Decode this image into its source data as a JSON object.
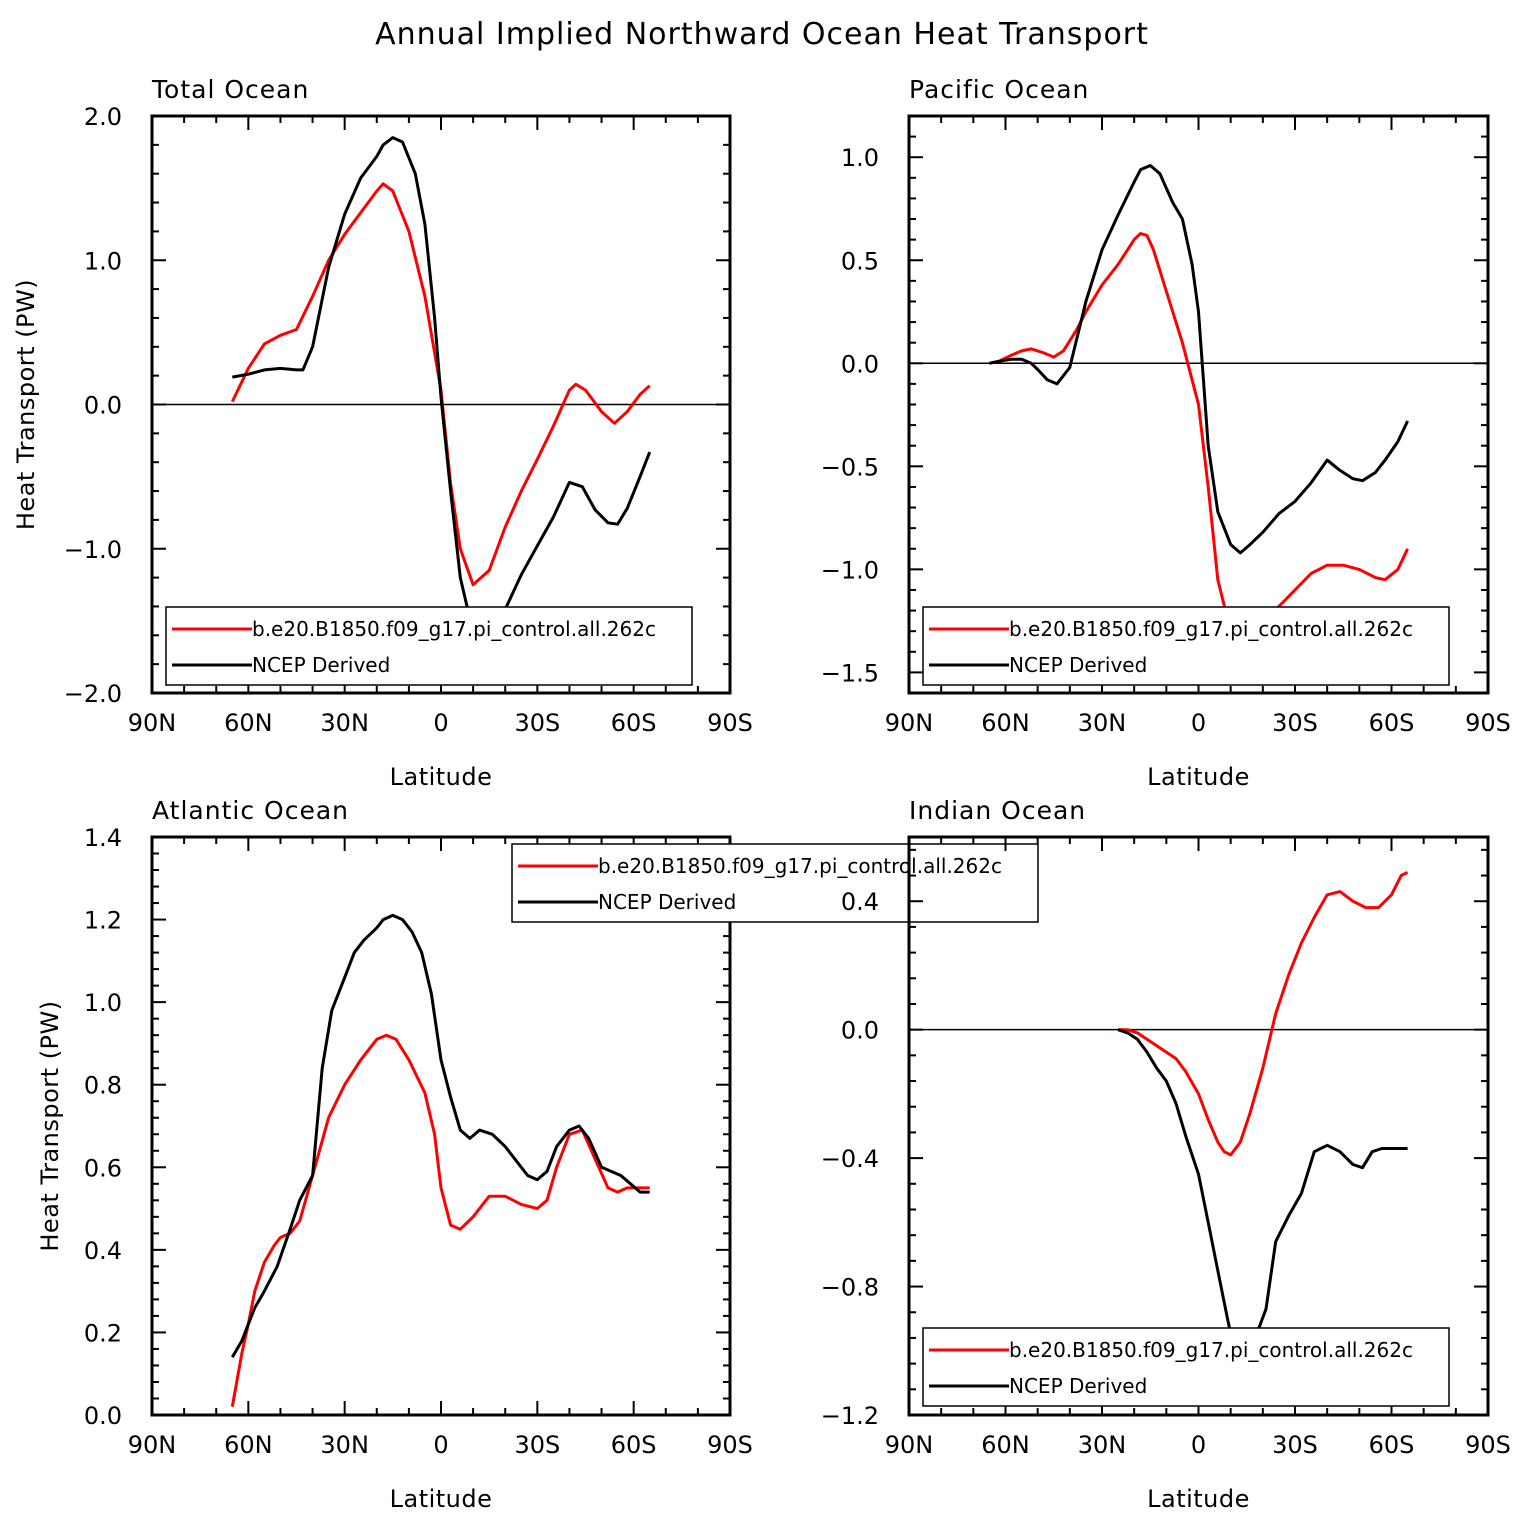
{
  "figure": {
    "title": "Annual Implied Northward Ocean Heat Transport"
  },
  "colors": {
    "model": "#ff0000",
    "obs": "#000000",
    "frame": "#000000"
  },
  "chart_data": [
    {
      "type": "line",
      "title": "Total Ocean",
      "xlabel": "Latitude",
      "ylabel": "Heat Transport (PW)",
      "xlim": [
        90,
        -90
      ],
      "ylim": [
        -2.0,
        2.0
      ],
      "xticks": [
        90,
        60,
        30,
        0,
        -30,
        -60,
        -90
      ],
      "xtick_labels": [
        "90N",
        "60N",
        "30N",
        "0",
        "30S",
        "60S",
        "90S"
      ],
      "yticks": [
        -2.0,
        -1.0,
        0.0,
        1.0,
        2.0
      ],
      "ytick_labels": [
        "−2.0",
        "−1.0",
        "0.0",
        "1.0",
        "2.0"
      ],
      "zero_line": true,
      "legend": "bottom",
      "series": [
        {
          "name": "b.e20.B1850.f09_g17.pi_control.all.262c",
          "color": "red",
          "x": [
            65,
            60,
            55,
            50,
            45,
            40,
            35,
            30,
            25,
            20,
            18,
            15,
            10,
            5,
            0,
            -3,
            -6,
            -10,
            -15,
            -20,
            -25,
            -30,
            -35,
            -40,
            -42,
            -45,
            -50,
            -54,
            -58,
            -62,
            -65
          ],
          "y": [
            0.02,
            0.25,
            0.42,
            0.48,
            0.52,
            0.75,
            1.0,
            1.18,
            1.33,
            1.48,
            1.53,
            1.48,
            1.2,
            0.75,
            0.1,
            -0.55,
            -1.0,
            -1.25,
            -1.15,
            -0.85,
            -0.6,
            -0.38,
            -0.15,
            0.1,
            0.14,
            0.1,
            -0.05,
            -0.13,
            -0.05,
            0.07,
            0.13
          ]
        },
        {
          "name": "NCEP Derived",
          "color": "black",
          "x": [
            65,
            60,
            55,
            50,
            45,
            43,
            40,
            35,
            30,
            25,
            20,
            18,
            15,
            12,
            8,
            5,
            2,
            0,
            -3,
            -6,
            -10,
            -13,
            -16,
            -20,
            -25,
            -30,
            -35,
            -40,
            -44,
            -48,
            -52,
            -55,
            -58,
            -62,
            -65
          ],
          "y": [
            0.19,
            0.21,
            0.24,
            0.25,
            0.24,
            0.24,
            0.4,
            0.95,
            1.32,
            1.57,
            1.72,
            1.8,
            1.85,
            1.82,
            1.6,
            1.25,
            0.6,
            0.05,
            -0.6,
            -1.2,
            -1.58,
            -1.66,
            -1.6,
            -1.42,
            -1.18,
            -0.98,
            -0.78,
            -0.54,
            -0.57,
            -0.73,
            -0.82,
            -0.83,
            -0.72,
            -0.5,
            -0.33
          ]
        }
      ]
    },
    {
      "type": "line",
      "title": "Pacific Ocean",
      "xlabel": "Latitude",
      "ylabel": "",
      "xlim": [
        90,
        -90
      ],
      "ylim": [
        -1.6,
        1.2
      ],
      "xticks": [
        90,
        60,
        30,
        0,
        -30,
        -60,
        -90
      ],
      "xtick_labels": [
        "90N",
        "60N",
        "30N",
        "0",
        "30S",
        "60S",
        "90S"
      ],
      "yticks": [
        -1.5,
        -1.0,
        -0.5,
        0.0,
        0.5,
        1.0
      ],
      "ytick_labels": [
        "−1.5",
        "−1.0",
        "−0.5",
        "0.0",
        "0.5",
        "1.0"
      ],
      "zero_line": true,
      "legend": "bottom",
      "series": [
        {
          "name": "b.e20.B1850.f09_g17.pi_control.all.262c",
          "color": "red",
          "x": [
            65,
            62,
            58,
            55,
            52,
            50,
            48,
            45,
            42,
            38,
            35,
            30,
            25,
            20,
            18,
            16,
            14,
            10,
            5,
            0,
            -3,
            -6,
            -10,
            -15,
            -20,
            -25,
            -30,
            -35,
            -40,
            -45,
            -50,
            -55,
            -58,
            -62,
            -65
          ],
          "y": [
            0.0,
            0.01,
            0.04,
            0.06,
            0.07,
            0.06,
            0.05,
            0.03,
            0.06,
            0.16,
            0.25,
            0.38,
            0.48,
            0.6,
            0.63,
            0.62,
            0.55,
            0.35,
            0.1,
            -0.2,
            -0.6,
            -1.05,
            -1.3,
            -1.32,
            -1.25,
            -1.18,
            -1.1,
            -1.02,
            -0.98,
            -0.98,
            -1.0,
            -1.04,
            -1.05,
            -1.0,
            -0.9
          ]
        },
        {
          "name": "NCEP Derived",
          "color": "black",
          "x": [
            65,
            62,
            58,
            55,
            52,
            50,
            47,
            44,
            40,
            35,
            30,
            25,
            20,
            18,
            15,
            12,
            10,
            8,
            5,
            2,
            0,
            -3,
            -6,
            -10,
            -13,
            -16,
            -20,
            -25,
            -30,
            -35,
            -40,
            -44,
            -48,
            -51,
            -55,
            -58,
            -62,
            -65
          ],
          "y": [
            0.0,
            0.01,
            0.02,
            0.02,
            0.0,
            -0.03,
            -0.08,
            -0.1,
            -0.02,
            0.3,
            0.55,
            0.72,
            0.88,
            0.94,
            0.96,
            0.92,
            0.85,
            0.78,
            0.7,
            0.48,
            0.25,
            -0.4,
            -0.72,
            -0.88,
            -0.92,
            -0.88,
            -0.82,
            -0.73,
            -0.67,
            -0.58,
            -0.47,
            -0.52,
            -0.56,
            -0.57,
            -0.53,
            -0.47,
            -0.38,
            -0.28
          ]
        }
      ]
    },
    {
      "type": "line",
      "title": "Atlantic Ocean",
      "xlabel": "Latitude",
      "ylabel": "Heat Transport (PW)",
      "xlim": [
        90,
        -90
      ],
      "ylim": [
        0.0,
        1.4
      ],
      "xticks": [
        90,
        60,
        30,
        0,
        -30,
        -60,
        -90
      ],
      "xtick_labels": [
        "90N",
        "60N",
        "30N",
        "0",
        "30S",
        "60S",
        "90S"
      ],
      "yticks": [
        0.0,
        0.2,
        0.4,
        0.6,
        0.8,
        1.0,
        1.2,
        1.4
      ],
      "ytick_labels": [
        "0.0",
        "0.2",
        "0.4",
        "0.6",
        "0.8",
        "1.0",
        "1.2",
        "1.4"
      ],
      "zero_line": false,
      "legend": "top-right",
      "series": [
        {
          "name": "b.e20.B1850.f09_g17.pi_control.all.262c",
          "color": "red",
          "x": [
            65,
            62,
            60,
            58,
            55,
            52,
            50,
            47,
            44,
            40,
            35,
            30,
            25,
            20,
            17,
            14,
            10,
            5,
            2,
            0,
            -3,
            -6,
            -10,
            -15,
            -20,
            -25,
            -30,
            -33,
            -36,
            -40,
            -44,
            -48,
            -52,
            -55,
            -58,
            -62,
            -65
          ],
          "y": [
            0.02,
            0.15,
            0.22,
            0.3,
            0.37,
            0.41,
            0.43,
            0.44,
            0.47,
            0.58,
            0.72,
            0.8,
            0.86,
            0.91,
            0.92,
            0.91,
            0.86,
            0.78,
            0.68,
            0.55,
            0.46,
            0.45,
            0.48,
            0.53,
            0.53,
            0.51,
            0.5,
            0.52,
            0.6,
            0.68,
            0.69,
            0.62,
            0.55,
            0.54,
            0.55,
            0.55,
            0.55
          ]
        },
        {
          "name": "NCEP Derived",
          "color": "black",
          "x": [
            65,
            62,
            58,
            55,
            51,
            47,
            44,
            40,
            37,
            34,
            30,
            27,
            24,
            20,
            18,
            15,
            12,
            9,
            6,
            3,
            0,
            -3,
            -6,
            -9,
            -12,
            -16,
            -20,
            -24,
            -27,
            -30,
            -33,
            -36,
            -40,
            -43,
            -46,
            -50,
            -53,
            -56,
            -59,
            -62,
            -65
          ],
          "y": [
            0.14,
            0.18,
            0.26,
            0.3,
            0.36,
            0.45,
            0.52,
            0.58,
            0.84,
            0.98,
            1.06,
            1.12,
            1.15,
            1.18,
            1.2,
            1.21,
            1.2,
            1.17,
            1.12,
            1.02,
            0.86,
            0.77,
            0.69,
            0.67,
            0.69,
            0.68,
            0.65,
            0.61,
            0.58,
            0.57,
            0.59,
            0.65,
            0.69,
            0.7,
            0.67,
            0.6,
            0.59,
            0.58,
            0.56,
            0.54,
            0.54
          ]
        }
      ]
    },
    {
      "type": "line",
      "title": "Indian Ocean",
      "xlabel": "Latitude",
      "ylabel": "",
      "xlim": [
        90,
        -90
      ],
      "ylim": [
        -1.2,
        0.6
      ],
      "xticks": [
        90,
        60,
        30,
        0,
        -30,
        -60,
        -90
      ],
      "xtick_labels": [
        "90N",
        "60N",
        "30N",
        "0",
        "30S",
        "60S",
        "90S"
      ],
      "yticks": [
        -1.2,
        -0.8,
        -0.4,
        0.0,
        0.4
      ],
      "ytick_labels": [
        "−1.2",
        "−0.8",
        "−0.4",
        "0.0",
        "0.4"
      ],
      "zero_line": true,
      "legend": "bottom",
      "series": [
        {
          "name": "b.e20.B1850.f09_g17.pi_control.all.262c",
          "color": "red",
          "x": [
            25,
            22,
            19,
            16,
            13,
            10,
            7,
            4,
            0,
            -3,
            -6,
            -8,
            -10,
            -13,
            -16,
            -20,
            -24,
            -28,
            -32,
            -36,
            -40,
            -44,
            -48,
            -52,
            -56,
            -60,
            -63,
            -65
          ],
          "y": [
            0.0,
            0.0,
            -0.01,
            -0.03,
            -0.05,
            -0.07,
            -0.09,
            -0.13,
            -0.2,
            -0.28,
            -0.35,
            -0.38,
            -0.39,
            -0.35,
            -0.26,
            -0.12,
            0.05,
            0.17,
            0.27,
            0.35,
            0.42,
            0.43,
            0.4,
            0.38,
            0.38,
            0.42,
            0.48,
            0.49
          ]
        },
        {
          "name": "NCEP Derived",
          "color": "black",
          "x": [
            25,
            22,
            19,
            16,
            13,
            10,
            7,
            4,
            0,
            -3,
            -6,
            -9,
            -12,
            -15,
            -18,
            -21,
            -24,
            -28,
            -32,
            -36,
            -40,
            -44,
            -48,
            -51,
            -54,
            -57,
            -60,
            -63,
            -65
          ],
          "y": [
            0.0,
            -0.01,
            -0.03,
            -0.07,
            -0.12,
            -0.16,
            -0.23,
            -0.33,
            -0.45,
            -0.6,
            -0.75,
            -0.9,
            -1.04,
            -1.01,
            -0.95,
            -0.87,
            -0.66,
            -0.58,
            -0.51,
            -0.38,
            -0.36,
            -0.38,
            -0.42,
            -0.43,
            -0.38,
            -0.37,
            -0.37,
            -0.37,
            -0.37
          ]
        }
      ]
    }
  ]
}
